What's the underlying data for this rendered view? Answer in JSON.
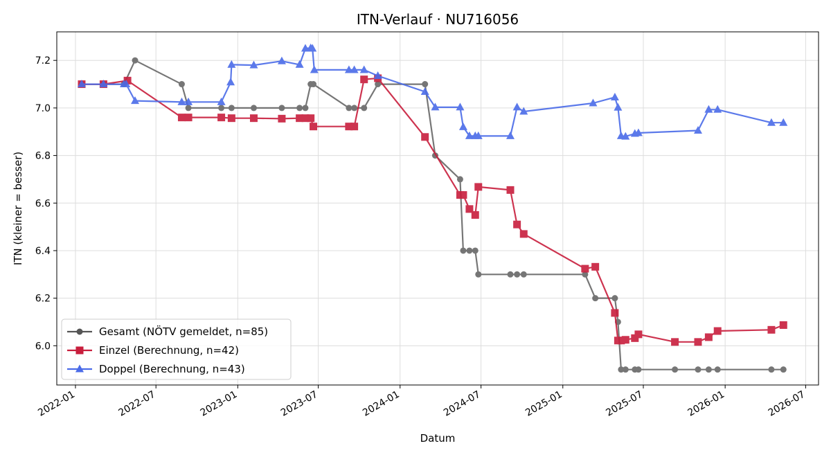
{
  "chart_data": {
    "type": "line",
    "title": "ITN-Verlauf · NU716056",
    "xlabel": "Datum",
    "ylabel": "ITN  (kleiner = besser)",
    "xlim": [
      "2021-11-20",
      "2026-07-30"
    ],
    "ylim": [
      5.835,
      7.32
    ],
    "x_ticks": [
      "2022-01",
      "2022-07",
      "2023-01",
      "2023-07",
      "2024-01",
      "2024-07",
      "2025-01",
      "2025-07",
      "2026-01",
      "2026-07"
    ],
    "y_ticks": [
      6.0,
      6.2,
      6.4,
      6.6,
      6.8,
      7.0,
      7.2
    ],
    "y_tick_labels": [
      "6.0",
      "6.2",
      "6.4",
      "6.6",
      "6.8",
      "7.0",
      "7.2"
    ],
    "grid": true,
    "legend_position": "lower-left",
    "series": [
      {
        "name": "Gesamt (NÖTV gemeldet, n=85)",
        "color": "#555555",
        "marker": "circle",
        "points": [
          [
            "2022-01-15",
            7.1
          ],
          [
            "2022-03-05",
            7.1
          ],
          [
            "2022-04-20",
            7.1
          ],
          [
            "2022-05-15",
            7.2
          ],
          [
            "2022-08-28",
            7.1
          ],
          [
            "2022-09-12",
            7.0
          ],
          [
            "2022-11-25",
            7.0
          ],
          [
            "2022-12-18",
            7.0
          ],
          [
            "2023-02-06",
            7.0
          ],
          [
            "2023-04-10",
            7.0
          ],
          [
            "2023-05-20",
            7.0
          ],
          [
            "2023-06-02",
            7.0
          ],
          [
            "2023-06-14",
            7.1
          ],
          [
            "2023-06-20",
            7.1
          ],
          [
            "2023-09-08",
            7.0
          ],
          [
            "2023-09-20",
            7.0
          ],
          [
            "2023-10-12",
            7.0
          ],
          [
            "2023-11-12",
            7.1
          ],
          [
            "2024-02-26",
            7.1
          ],
          [
            "2024-03-20",
            6.8
          ],
          [
            "2024-05-15",
            6.7
          ],
          [
            "2024-05-22",
            6.4
          ],
          [
            "2024-06-05",
            6.4
          ],
          [
            "2024-06-18",
            6.4
          ],
          [
            "2024-06-25",
            6.3
          ],
          [
            "2024-09-05",
            6.3
          ],
          [
            "2024-09-20",
            6.3
          ],
          [
            "2024-10-05",
            6.3
          ],
          [
            "2025-02-20",
            6.3
          ],
          [
            "2025-03-15",
            6.2
          ],
          [
            "2025-04-28",
            6.2
          ],
          [
            "2025-05-05",
            6.1
          ],
          [
            "2025-05-12",
            5.9
          ],
          [
            "2025-05-22",
            5.9
          ],
          [
            "2025-06-12",
            5.9
          ],
          [
            "2025-06-20",
            5.9
          ],
          [
            "2025-09-10",
            5.9
          ],
          [
            "2025-11-01",
            5.9
          ],
          [
            "2025-11-25",
            5.9
          ],
          [
            "2025-12-15",
            5.9
          ],
          [
            "2026-04-15",
            5.9
          ],
          [
            "2026-05-12",
            5.9
          ]
        ]
      },
      {
        "name": "Einzel (Berechnung, n=42)",
        "color": "#c81e3c",
        "marker": "square",
        "points": [
          [
            "2022-01-15",
            7.1
          ],
          [
            "2022-03-05",
            7.1
          ],
          [
            "2022-04-28",
            7.115
          ],
          [
            "2022-08-28",
            6.96
          ],
          [
            "2022-09-12",
            6.96
          ],
          [
            "2022-11-25",
            6.96
          ],
          [
            "2022-12-18",
            6.957
          ],
          [
            "2023-02-06",
            6.957
          ],
          [
            "2023-04-10",
            6.955
          ],
          [
            "2023-05-20",
            6.957
          ],
          [
            "2023-06-02",
            6.957
          ],
          [
            "2023-06-14",
            6.957
          ],
          [
            "2023-06-20",
            6.922
          ],
          [
            "2023-09-08",
            6.922
          ],
          [
            "2023-09-20",
            6.922
          ],
          [
            "2023-10-12",
            7.12
          ],
          [
            "2023-11-12",
            7.125
          ],
          [
            "2024-02-26",
            6.878
          ],
          [
            "2024-05-15",
            6.634
          ],
          [
            "2024-05-22",
            6.634
          ],
          [
            "2024-06-05",
            6.575
          ],
          [
            "2024-06-18",
            6.55
          ],
          [
            "2024-06-25",
            6.668
          ],
          [
            "2024-09-05",
            6.655
          ],
          [
            "2024-09-20",
            6.51
          ],
          [
            "2024-10-05",
            6.47
          ],
          [
            "2025-02-20",
            6.324
          ],
          [
            "2025-03-15",
            6.332
          ],
          [
            "2025-04-28",
            6.138
          ],
          [
            "2025-05-05",
            6.022
          ],
          [
            "2025-05-12",
            6.022
          ],
          [
            "2025-05-22",
            6.025
          ],
          [
            "2025-06-12",
            6.032
          ],
          [
            "2025-06-20",
            6.048
          ],
          [
            "2025-09-10",
            6.016
          ],
          [
            "2025-11-01",
            6.016
          ],
          [
            "2025-11-25",
            6.036
          ],
          [
            "2025-12-15",
            6.062
          ],
          [
            "2026-04-15",
            6.067
          ],
          [
            "2026-05-12",
            6.087
          ]
        ]
      },
      {
        "name": "Doppel (Berechnung, n=43)",
        "color": "#4a6be8",
        "marker": "triangle",
        "points": [
          [
            "2022-01-15",
            7.1
          ],
          [
            "2022-03-05",
            7.1
          ],
          [
            "2022-04-20",
            7.1
          ],
          [
            "2022-04-25",
            7.1
          ],
          [
            "2022-05-15",
            7.03
          ],
          [
            "2022-08-28",
            7.025
          ],
          [
            "2022-09-12",
            7.025
          ],
          [
            "2022-11-25",
            7.025
          ],
          [
            "2022-12-16",
            7.108
          ],
          [
            "2022-12-18",
            7.182
          ],
          [
            "2023-02-06",
            7.18
          ],
          [
            "2023-04-10",
            7.197
          ],
          [
            "2023-05-20",
            7.182
          ],
          [
            "2023-06-02",
            7.25
          ],
          [
            "2023-06-14",
            7.252
          ],
          [
            "2023-06-18",
            7.25
          ],
          [
            "2023-06-22",
            7.16
          ],
          [
            "2023-09-08",
            7.16
          ],
          [
            "2023-09-20",
            7.16
          ],
          [
            "2023-10-12",
            7.16
          ],
          [
            "2023-11-12",
            7.135
          ],
          [
            "2024-02-26",
            7.068
          ],
          [
            "2024-03-20",
            7.003
          ],
          [
            "2024-05-15",
            7.003
          ],
          [
            "2024-05-22",
            6.92
          ],
          [
            "2024-06-05",
            6.882
          ],
          [
            "2024-06-18",
            6.882
          ],
          [
            "2024-06-25",
            6.882
          ],
          [
            "2024-09-05",
            6.882
          ],
          [
            "2024-09-20",
            7.003
          ],
          [
            "2024-10-05",
            6.985
          ],
          [
            "2025-03-10",
            7.02
          ],
          [
            "2025-04-28",
            7.045
          ],
          [
            "2025-05-05",
            7.002
          ],
          [
            "2025-05-12",
            6.882
          ],
          [
            "2025-05-22",
            6.88
          ],
          [
            "2025-06-12",
            6.892
          ],
          [
            "2025-06-20",
            6.895
          ],
          [
            "2025-11-01",
            6.905
          ],
          [
            "2025-11-25",
            6.993
          ],
          [
            "2025-12-15",
            6.993
          ],
          [
            "2026-04-15",
            6.938
          ],
          [
            "2026-05-12",
            6.938
          ]
        ]
      }
    ]
  }
}
